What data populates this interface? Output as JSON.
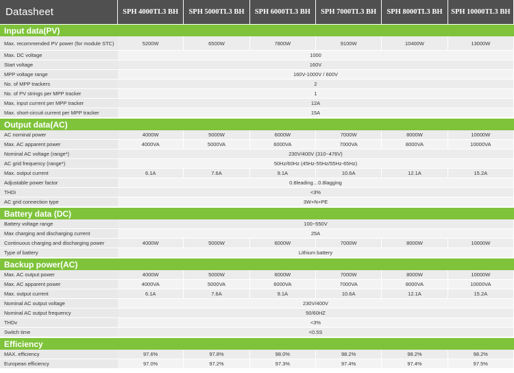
{
  "header": {
    "title": "Datasheet",
    "models": [
      "SPH 4000TL3 BH",
      "SPH 5000TL3 BH",
      "SPH 6000TL3 BH",
      "SPH 7000TL3 BH",
      "SPH 8000TL3 BH",
      "SPH 10000TL3 BH"
    ]
  },
  "sections": {
    "input": {
      "title": "Input data(PV)",
      "max_pv_power": {
        "label": "Max. recommended PV power (for module STC)",
        "values": [
          "5200W",
          "6500W",
          "7800W",
          "9100W",
          "10400W",
          "13000W"
        ]
      },
      "max_dc_voltage": {
        "label": "Max. DC voltage",
        "value": "1000"
      },
      "start_voltage": {
        "label": "Start voltage",
        "value": "160V"
      },
      "mpp_range": {
        "label": "MPP voltage range",
        "value": "160V-1000V / 600V"
      },
      "mpp_trackers": {
        "label": "No. of MPP trackers",
        "value": "2"
      },
      "pv_strings": {
        "label": "No. of PV strings per MPP tracker",
        "value": "1"
      },
      "max_input_current": {
        "label": "Max. input current per MPP tracker",
        "value": "12A"
      },
      "max_sc_current": {
        "label": "Max. short-circuit current per MPP tracker",
        "value": "15A"
      }
    },
    "output": {
      "title": "Output data(AC)",
      "ac_nominal_power": {
        "label": "AC nominal power",
        "values": [
          "4000W",
          "5000W",
          "6000W",
          "7000W",
          "8000W",
          "10000W"
        ]
      },
      "max_ac_apparent": {
        "label": "Max. AC apparent power",
        "values": [
          "4000VA",
          "5000VA",
          "6000VA",
          "7000VA",
          "8000VA",
          "10000VA"
        ]
      },
      "nominal_ac_voltage": {
        "label": "Nominal AC voltage (range*)",
        "value": "230V/400V (310~476V)"
      },
      "ac_grid_freq": {
        "label": "AC grid frequency (range*)",
        "value": "50Hz/60Hz (45Hz-55Hz/55Hz-65Hz)"
      },
      "max_output_current": {
        "label": "Max. output current",
        "values": [
          "6.1A",
          "7.6A",
          "9.1A",
          "10.6A",
          "12.1A",
          "15.2A"
        ]
      },
      "power_factor": {
        "label": "Adjustable power factor",
        "value": "0.8leading…0.8lagging"
      },
      "thdi": {
        "label": "THDi",
        "value": "<3%"
      },
      "grid_connection": {
        "label": "AC grid connection type",
        "value": "3W+N+PE"
      }
    },
    "battery": {
      "title": "Battery data (DC)",
      "voltage_range": {
        "label": "Battery voltage range",
        "value": "100~550V"
      },
      "max_current": {
        "label": "Max charging and discharging current",
        "value": "25A"
      },
      "continuous_power": {
        "label": "Continuous charging and discharging power",
        "values": [
          "4000W",
          "5000W",
          "6000W",
          "7000W",
          "8000W",
          "10000W"
        ]
      },
      "type": {
        "label": "Type of battery",
        "value": "Lithium battery"
      }
    },
    "backup": {
      "title": "Backup power(AC)",
      "max_ac_output": {
        "label": "Max. AC output power",
        "values": [
          "4000W",
          "5000W",
          "6000W",
          "7000W",
          "8000W",
          "10000W"
        ]
      },
      "max_ac_apparent": {
        "label": "Max. AC apparent power",
        "values": [
          "4000VA",
          "5000VA",
          "6000VA",
          "7000VA",
          "8000VA",
          "10000VA"
        ]
      },
      "max_output_current": {
        "label": "Max. output current",
        "values": [
          "6.1A",
          "7.6A",
          "9.1A",
          "10.6A",
          "12.1A",
          "15.2A"
        ]
      },
      "nominal_voltage": {
        "label": "Nominal AC output voltage",
        "value": "230V/400V"
      },
      "nominal_freq": {
        "label": "Nominal AC output frequency",
        "value": "50/60HZ"
      },
      "thdv": {
        "label": "THDv",
        "value": "<3%"
      },
      "switch_time": {
        "label": "Switch time",
        "value": "<0.5S"
      }
    },
    "efficiency": {
      "title": "Efficiency",
      "max_eff": {
        "label": "MAX. efficiency",
        "values": [
          "97.6%",
          "97.8%",
          "98.0%",
          "98.2%",
          "98.2%",
          "98.2%"
        ]
      },
      "euro_eff": {
        "label": "European efficiency",
        "values": [
          "97.0%",
          "97.2%",
          "97.3%",
          "97.4%",
          "97.4%",
          "97.5%"
        ]
      }
    }
  }
}
